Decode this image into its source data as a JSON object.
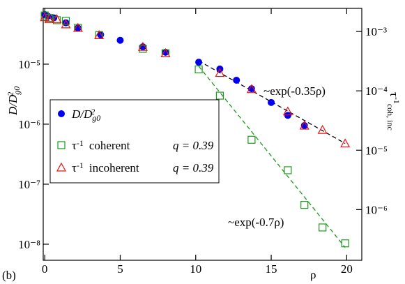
{
  "chart_data": {
    "type": "scatter",
    "xlabel": "ρ",
    "ylabel": {
      "text": "D/D",
      "sub": "g0",
      "sup": "2"
    },
    "y2label": {
      "text": "τ",
      "sup": "-1",
      "sub": "coh, inc"
    },
    "panel": "(b)",
    "xlim": [
      -0.1,
      21
    ],
    "xticks": [
      0,
      5,
      10,
      15,
      20
    ],
    "yscale": "log",
    "ylim": [
      5.4e-09,
      8.5e-05
    ],
    "yticks": [
      {
        "value": 1e-05,
        "label": "10⁻⁵"
      },
      {
        "value": 1e-06,
        "label": "10⁻⁶"
      },
      {
        "value": 1e-07,
        "label": "10⁻⁷"
      },
      {
        "value": 1e-08,
        "label": "10⁻⁸"
      }
    ],
    "y2scale": "log",
    "y2lim": [
      1.4e-07,
      0.00245
    ],
    "y2ticks": [
      {
        "value": 0.001,
        "label": "10⁻³"
      },
      {
        "value": 0.0001,
        "label": "10⁻⁴"
      },
      {
        "value": 1e-05,
        "label": "10⁻⁵"
      },
      {
        "value": 1e-06,
        "label": "10⁻⁶"
      }
    ],
    "series": [
      {
        "name": {
          "text": "D/D",
          "sub": "g0",
          "sup": "2"
        },
        "color": "#0000ee",
        "marker": "circle",
        "axis": "y",
        "x": [
          0,
          0.2,
          0.6,
          1.4,
          2.2,
          3.7,
          5,
          6.5,
          8,
          10.2,
          11.6,
          12.7,
          13.7,
          15,
          16.1,
          17.2
        ],
        "values": [
          6.7e-05,
          6.3e-05,
          5.9e-05,
          4.9e-05,
          4e-05,
          3.1e-05,
          2.5e-05,
          1.95e-05,
          1.58e-05,
          1.08e-05,
          8.3e-06,
          5.4e-06,
          3.9e-06,
          2.3e-06,
          1.4e-06,
          9.5e-07
        ]
      },
      {
        "name": {
          "text": "τ",
          "sup": "-1",
          "rest": "coherent",
          "q": "q = 0.39"
        },
        "color": "#1a9a1a",
        "marker": "square",
        "axis": "y2",
        "x": [
          0,
          0.3,
          0.8,
          1.4,
          2.2,
          3.6,
          6.5,
          8,
          10.2,
          11.6,
          13.7,
          16.1,
          17.2,
          18.4,
          19.9
        ],
        "values": [
          0.00186,
          0.0017,
          0.00155,
          0.00151,
          0.00115,
          0.00087,
          0.00051,
          0.00043,
          0.00023,
          8.3e-05,
          1.5e-05,
          4.6e-06,
          1.2e-06,
          5e-07,
          2.7e-07
        ]
      },
      {
        "name": {
          "text": "τ",
          "sup": "-1",
          "rest": "incoherent",
          "q": "q = 0.39"
        },
        "color": "#ee1111",
        "marker": "triangle",
        "axis": "y2",
        "x": [
          0,
          0.3,
          0.8,
          1.4,
          2.2,
          3.6,
          6.5,
          8,
          11.6,
          13.7,
          16.1,
          17.2,
          18.4,
          19.9
        ],
        "values": [
          0.00174,
          0.00162,
          0.00162,
          0.00132,
          0.00115,
          0.00087,
          0.00055,
          0.00043,
          0.0002,
          0.000107,
          4.5e-05,
          2.6e-05,
          2.2e-05,
          1.3e-05
        ]
      }
    ],
    "fits": [
      {
        "label": "~exp(-0.35ρ)",
        "color": "#000000",
        "axis": "y2",
        "x": [
          10.2,
          19.9
        ],
        "values": [
          0.00032,
          1.3e-05
        ]
      },
      {
        "label": "~exp(-0.7ρ)",
        "color": "#1a9a1a",
        "axis": "y2",
        "x": [
          10.2,
          19.9
        ],
        "values": [
          0.00026,
          2.3e-07
        ]
      }
    ]
  }
}
